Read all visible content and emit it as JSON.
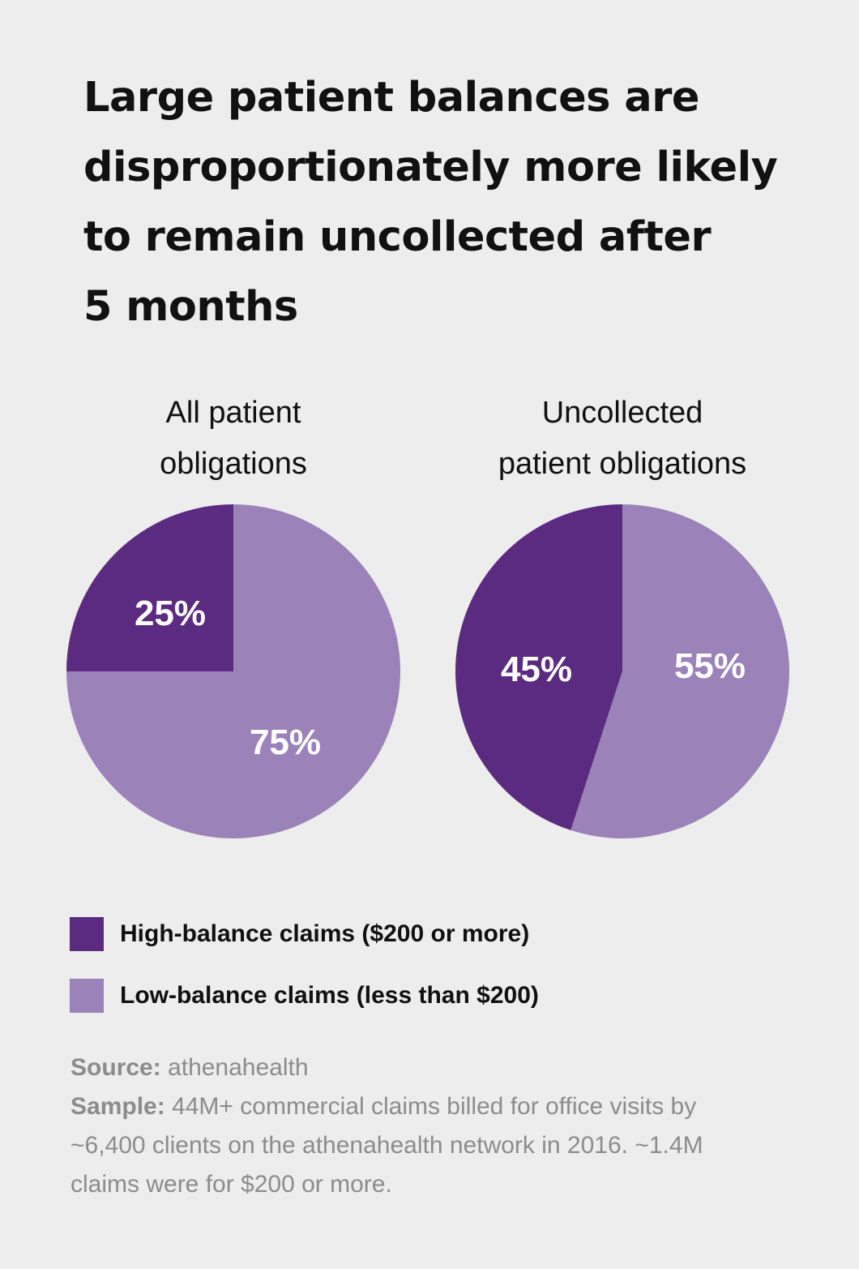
{
  "title_lines": [
    "Large patient balances are",
    "disproportionately more likely",
    "to remain uncollected after",
    "5 months"
  ],
  "colors": {
    "background": "#ededed",
    "high_balance": "#5a2b81",
    "low_balance": "#9b82b8",
    "text": "#111111",
    "footnote": "#8c8c8c"
  },
  "chart_data": [
    {
      "type": "pie",
      "title_lines": [
        "All patient",
        "obligations"
      ],
      "categories": [
        "High-balance claims ($200 or more)",
        "Low-balance claims (less than $200)"
      ],
      "values": [
        25,
        75
      ],
      "labels": [
        "25%",
        "75%"
      ],
      "colors": [
        "#5a2b81",
        "#9b82b8"
      ]
    },
    {
      "type": "pie",
      "title_lines": [
        "Uncollected",
        "patient obligations"
      ],
      "categories": [
        "High-balance claims ($200 or more)",
        "Low-balance claims (less than $200)"
      ],
      "values": [
        45,
        55
      ],
      "labels": [
        "45%",
        "55%"
      ],
      "colors": [
        "#5a2b81",
        "#9b82b8"
      ]
    }
  ],
  "legend": [
    {
      "label": "High-balance claims ($200 or more)",
      "color": "#5a2b81"
    },
    {
      "label": "Low-balance claims (less than $200)",
      "color": "#9b82b8"
    }
  ],
  "footnote": {
    "source_label": "Source:",
    "source_text": "athenahealth",
    "sample_label": "Sample:",
    "sample_lines": [
      "44M+ commercial claims billed for office visits by",
      "~6,400 clients on the athenahealth network in 2016. ~1.4M",
      "claims were for $200 or more."
    ]
  }
}
